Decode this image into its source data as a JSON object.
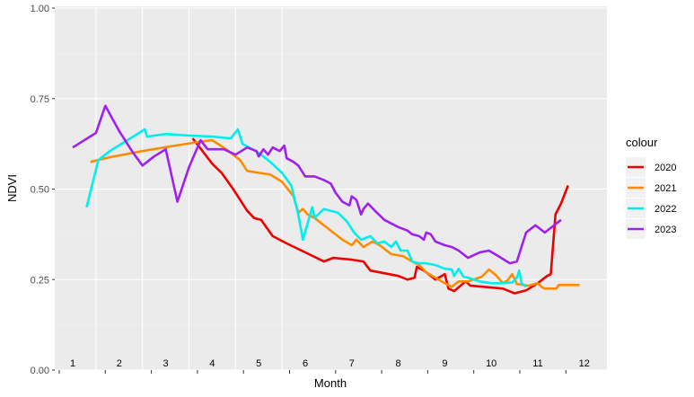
{
  "chart_data": {
    "type": "line",
    "title": "",
    "xlabel": "Month",
    "ylabel": "NDVI",
    "ylim": [
      0,
      1
    ],
    "xlim": [
      1,
      12.5
    ],
    "y_ticks": [
      "0.00",
      "0.25",
      "0.50",
      "0.75",
      "1.00"
    ],
    "month_labels": [
      "1",
      "2",
      "3",
      "4",
      "5",
      "6",
      "7",
      "8",
      "9",
      "10",
      "11",
      "12"
    ],
    "grid": true,
    "legend": {
      "title": "colour",
      "position": "right"
    },
    "series": [
      {
        "name": "2020",
        "color": "#ee0000",
        "points": [
          [
            3.58,
            0.64
          ],
          [
            3.7,
            0.62
          ],
          [
            3.85,
            0.595
          ],
          [
            4.0,
            0.57
          ],
          [
            4.2,
            0.545
          ],
          [
            4.45,
            0.5
          ],
          [
            4.6,
            0.47
          ],
          [
            4.75,
            0.44
          ],
          [
            4.9,
            0.42
          ],
          [
            5.05,
            0.415
          ],
          [
            5.3,
            0.37
          ],
          [
            5.6,
            0.35
          ],
          [
            6.0,
            0.325
          ],
          [
            6.4,
            0.3
          ],
          [
            6.6,
            0.31
          ],
          [
            7.0,
            0.305
          ],
          [
            7.25,
            0.3
          ],
          [
            7.4,
            0.275
          ],
          [
            7.6,
            0.27
          ],
          [
            8.0,
            0.26
          ],
          [
            8.2,
            0.25
          ],
          [
            8.35,
            0.255
          ],
          [
            8.4,
            0.285
          ],
          [
            8.55,
            0.275
          ],
          [
            8.7,
            0.26
          ],
          [
            8.8,
            0.25
          ],
          [
            9.0,
            0.265
          ],
          [
            9.08,
            0.225
          ],
          [
            9.2,
            0.218
          ],
          [
            9.45,
            0.245
          ],
          [
            9.55,
            0.233
          ],
          [
            10.0,
            0.228
          ],
          [
            10.25,
            0.225
          ],
          [
            10.5,
            0.212
          ],
          [
            10.75,
            0.22
          ],
          [
            11.0,
            0.24
          ],
          [
            11.2,
            0.26
          ],
          [
            11.28,
            0.265
          ],
          [
            11.38,
            0.43
          ],
          [
            11.5,
            0.46
          ],
          [
            11.65,
            0.51
          ]
        ]
      },
      {
        "name": "2021",
        "color": "#ff8c00",
        "points": [
          [
            1.38,
            0.575
          ],
          [
            1.8,
            0.588
          ],
          [
            2.5,
            0.605
          ],
          [
            3.2,
            0.62
          ],
          [
            3.7,
            0.63
          ],
          [
            4.0,
            0.635
          ],
          [
            4.3,
            0.61
          ],
          [
            4.6,
            0.58
          ],
          [
            4.75,
            0.55
          ],
          [
            5.0,
            0.545
          ],
          [
            5.25,
            0.54
          ],
          [
            5.5,
            0.52
          ],
          [
            5.75,
            0.48
          ],
          [
            5.85,
            0.435
          ],
          [
            5.95,
            0.445
          ],
          [
            6.05,
            0.43
          ],
          [
            6.2,
            0.42
          ],
          [
            6.4,
            0.4
          ],
          [
            6.6,
            0.38
          ],
          [
            6.8,
            0.36
          ],
          [
            7.0,
            0.345
          ],
          [
            7.1,
            0.36
          ],
          [
            7.25,
            0.34
          ],
          [
            7.45,
            0.355
          ],
          [
            7.6,
            0.345
          ],
          [
            7.85,
            0.32
          ],
          [
            8.1,
            0.315
          ],
          [
            8.3,
            0.3
          ],
          [
            8.45,
            0.29
          ],
          [
            8.6,
            0.27
          ],
          [
            8.8,
            0.255
          ],
          [
            9.0,
            0.24
          ],
          [
            9.15,
            0.23
          ],
          [
            9.3,
            0.245
          ],
          [
            9.5,
            0.245
          ],
          [
            9.8,
            0.258
          ],
          [
            9.95,
            0.278
          ],
          [
            10.1,
            0.262
          ],
          [
            10.25,
            0.24
          ],
          [
            10.35,
            0.248
          ],
          [
            10.45,
            0.265
          ],
          [
            10.55,
            0.238
          ],
          [
            10.8,
            0.233
          ],
          [
            11.0,
            0.24
          ],
          [
            11.1,
            0.228
          ],
          [
            11.15,
            0.225
          ],
          [
            11.4,
            0.225
          ],
          [
            11.45,
            0.235
          ],
          [
            11.9,
            0.235
          ]
        ]
      },
      {
        "name": "2022",
        "color": "#00eeee",
        "points": [
          [
            1.3,
            0.45
          ],
          [
            1.55,
            0.58
          ],
          [
            1.8,
            0.605
          ],
          [
            2.3,
            0.645
          ],
          [
            2.55,
            0.665
          ],
          [
            2.6,
            0.645
          ],
          [
            3.0,
            0.652
          ],
          [
            3.5,
            0.648
          ],
          [
            4.0,
            0.645
          ],
          [
            4.4,
            0.64
          ],
          [
            4.55,
            0.665
          ],
          [
            4.65,
            0.625
          ],
          [
            5.0,
            0.6
          ],
          [
            5.25,
            0.575
          ],
          [
            5.5,
            0.545
          ],
          [
            5.7,
            0.51
          ],
          [
            5.85,
            0.43
          ],
          [
            5.95,
            0.36
          ],
          [
            6.15,
            0.45
          ],
          [
            6.2,
            0.42
          ],
          [
            6.4,
            0.445
          ],
          [
            6.7,
            0.435
          ],
          [
            6.9,
            0.41
          ],
          [
            7.05,
            0.38
          ],
          [
            7.2,
            0.36
          ],
          [
            7.4,
            0.37
          ],
          [
            7.55,
            0.35
          ],
          [
            7.7,
            0.355
          ],
          [
            7.85,
            0.34
          ],
          [
            7.95,
            0.355
          ],
          [
            8.05,
            0.33
          ],
          [
            8.2,
            0.33
          ],
          [
            8.3,
            0.3
          ],
          [
            8.45,
            0.295
          ],
          [
            8.6,
            0.295
          ],
          [
            8.8,
            0.29
          ],
          [
            9.0,
            0.28
          ],
          [
            9.15,
            0.278
          ],
          [
            9.2,
            0.26
          ],
          [
            9.3,
            0.28
          ],
          [
            9.4,
            0.258
          ],
          [
            9.5,
            0.255
          ],
          [
            9.75,
            0.245
          ],
          [
            10.0,
            0.24
          ],
          [
            10.25,
            0.24
          ],
          [
            10.45,
            0.242
          ],
          [
            10.55,
            0.255
          ],
          [
            10.6,
            0.275
          ],
          [
            10.65,
            0.24
          ],
          [
            10.75,
            0.23
          ]
        ]
      },
      {
        "name": "2023",
        "color": "#a020f0",
        "points": [
          [
            1.0,
            0.615
          ],
          [
            1.5,
            0.655
          ],
          [
            1.7,
            0.73
          ],
          [
            2.0,
            0.66
          ],
          [
            2.3,
            0.6
          ],
          [
            2.5,
            0.565
          ],
          [
            2.75,
            0.59
          ],
          [
            3.0,
            0.61
          ],
          [
            3.25,
            0.465
          ],
          [
            3.5,
            0.56
          ],
          [
            3.75,
            0.635
          ],
          [
            3.9,
            0.61
          ],
          [
            4.25,
            0.61
          ],
          [
            4.5,
            0.595
          ],
          [
            4.75,
            0.615
          ],
          [
            4.95,
            0.605
          ],
          [
            5.0,
            0.59
          ],
          [
            5.1,
            0.61
          ],
          [
            5.2,
            0.595
          ],
          [
            5.3,
            0.615
          ],
          [
            5.45,
            0.605
          ],
          [
            5.55,
            0.62
          ],
          [
            5.6,
            0.585
          ],
          [
            5.75,
            0.575
          ],
          [
            5.85,
            0.565
          ],
          [
            6.0,
            0.535
          ],
          [
            6.2,
            0.535
          ],
          [
            6.4,
            0.525
          ],
          [
            6.55,
            0.515
          ],
          [
            6.65,
            0.49
          ],
          [
            6.8,
            0.465
          ],
          [
            6.95,
            0.455
          ],
          [
            7.0,
            0.48
          ],
          [
            7.1,
            0.47
          ],
          [
            7.2,
            0.43
          ],
          [
            7.25,
            0.445
          ],
          [
            7.35,
            0.46
          ],
          [
            7.5,
            0.44
          ],
          [
            7.7,
            0.415
          ],
          [
            7.85,
            0.405
          ],
          [
            8.0,
            0.395
          ],
          [
            8.2,
            0.385
          ],
          [
            8.3,
            0.375
          ],
          [
            8.45,
            0.37
          ],
          [
            8.55,
            0.36
          ],
          [
            8.6,
            0.38
          ],
          [
            8.7,
            0.375
          ],
          [
            8.8,
            0.355
          ],
          [
            9.0,
            0.345
          ],
          [
            9.15,
            0.34
          ],
          [
            9.3,
            0.33
          ],
          [
            9.5,
            0.31
          ],
          [
            9.75,
            0.325
          ],
          [
            9.95,
            0.33
          ],
          [
            10.15,
            0.315
          ],
          [
            10.4,
            0.295
          ],
          [
            10.55,
            0.3
          ],
          [
            10.75,
            0.38
          ],
          [
            10.95,
            0.4
          ],
          [
            11.15,
            0.38
          ],
          [
            11.5,
            0.415
          ]
        ]
      }
    ]
  }
}
